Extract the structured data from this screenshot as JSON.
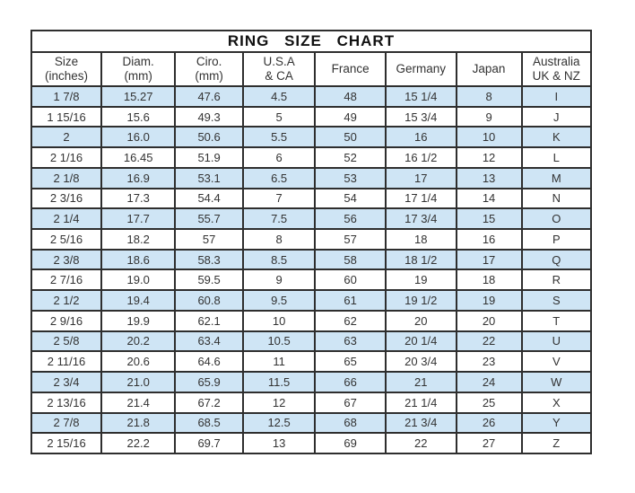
{
  "title": "RING SIZE CHART",
  "colors": {
    "bg": "#ffffff",
    "row_alt": "#cfe5f5",
    "border": "#2e2e2e",
    "text": "#333333"
  },
  "chart_data": {
    "type": "table",
    "title": "RING SIZE CHART",
    "columns": [
      {
        "label": "Size",
        "sublabel": "(inches)"
      },
      {
        "label": "Diam.",
        "sublabel": "(mm)"
      },
      {
        "label": "Ciro.",
        "sublabel": "(mm)"
      },
      {
        "label": "U.S.A",
        "sublabel": "& CA"
      },
      {
        "label": "France",
        "sublabel": ""
      },
      {
        "label": "Germany",
        "sublabel": ""
      },
      {
        "label": "Japan",
        "sublabel": ""
      },
      {
        "label": "Australia",
        "sublabel": "UK & NZ"
      }
    ],
    "rows": [
      [
        "1 7/8",
        "15.27",
        "47.6",
        "4.5",
        "48",
        "15 1/4",
        "8",
        "I"
      ],
      [
        "1 15/16",
        "15.6",
        "49.3",
        "5",
        "49",
        "15 3/4",
        "9",
        "J"
      ],
      [
        "2",
        "16.0",
        "50.6",
        "5.5",
        "50",
        "16",
        "10",
        "K"
      ],
      [
        "2 1/16",
        "16.45",
        "51.9",
        "6",
        "52",
        "16 1/2",
        "12",
        "L"
      ],
      [
        "2 1/8",
        "16.9",
        "53.1",
        "6.5",
        "53",
        "17",
        "13",
        "M"
      ],
      [
        "2 3/16",
        "17.3",
        "54.4",
        "7",
        "54",
        "17 1/4",
        "14",
        "N"
      ],
      [
        "2 1/4",
        "17.7",
        "55.7",
        "7.5",
        "56",
        "17 3/4",
        "15",
        "O"
      ],
      [
        "2 5/16",
        "18.2",
        "57",
        "8",
        "57",
        "18",
        "16",
        "P"
      ],
      [
        "2 3/8",
        "18.6",
        "58.3",
        "8.5",
        "58",
        "18 1/2",
        "17",
        "Q"
      ],
      [
        "2 7/16",
        "19.0",
        "59.5",
        "9",
        "60",
        "19",
        "18",
        "R"
      ],
      [
        "2 1/2",
        "19.4",
        "60.8",
        "9.5",
        "61",
        "19 1/2",
        "19",
        "S"
      ],
      [
        "2 9/16",
        "19.9",
        "62.1",
        "10",
        "62",
        "20",
        "20",
        "T"
      ],
      [
        "2 5/8",
        "20.2",
        "63.4",
        "10.5",
        "63",
        "20 1/4",
        "22",
        "U"
      ],
      [
        "2 11/16",
        "20.6",
        "64.6",
        "11",
        "65",
        "20 3/4",
        "23",
        "V"
      ],
      [
        "2 3/4",
        "21.0",
        "65.9",
        "11.5",
        "66",
        "21",
        "24",
        "W"
      ],
      [
        "2 13/16",
        "21.4",
        "67.2",
        "12",
        "67",
        "21 1/4",
        "25",
        "X"
      ],
      [
        "2 7/8",
        "21.8",
        "68.5",
        "12.5",
        "68",
        "21 3/4",
        "26",
        "Y"
      ],
      [
        "2 15/16",
        "22.2",
        "69.7",
        "13",
        "69",
        "22",
        "27",
        "Z"
      ]
    ],
    "layout": {
      "legend": false,
      "grid": true,
      "first_data_row_shaded": true,
      "shading_pattern": "alternating"
    }
  }
}
